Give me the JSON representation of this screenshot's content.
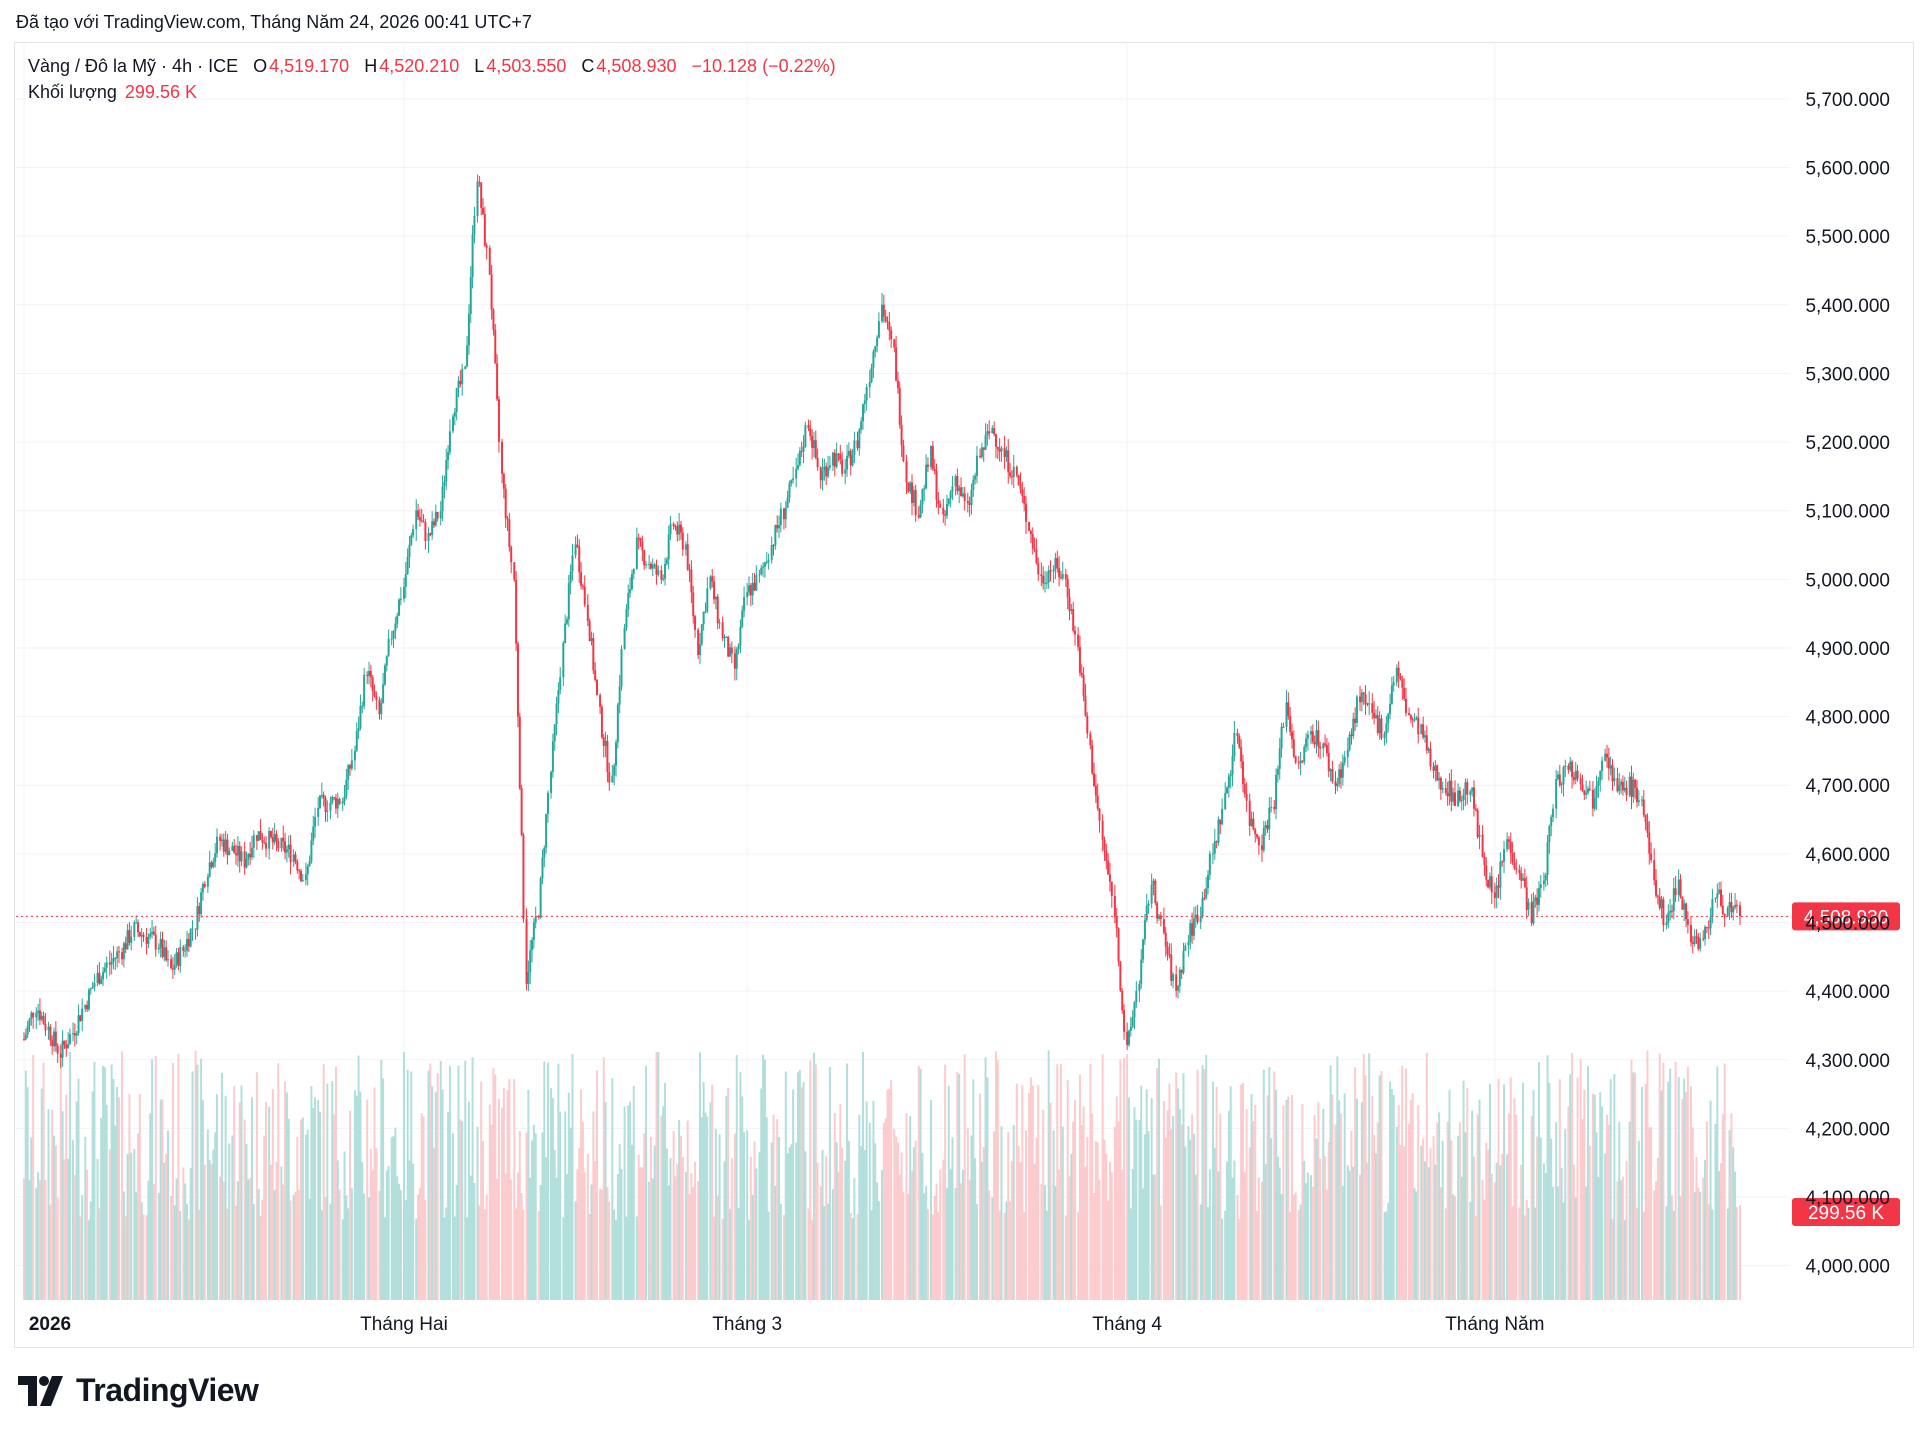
{
  "header": {
    "created_with": "Đã tạo với TradingView.com, Tháng Năm 24, 2026 00:41 UTC+7"
  },
  "legend": {
    "symbol": "Vàng / Đô la Mỹ · 4h · ICE",
    "o_label": "O",
    "o_value": "4,519.170",
    "h_label": "H",
    "h_value": "4,520.210",
    "l_label": "L",
    "l_value": "4,503.550",
    "c_label": "C",
    "c_value": "4,508.930",
    "change": "−10.128 (−0.22%)",
    "volume_label": "Khối lượng",
    "volume_value": "299.56 K"
  },
  "brand": {
    "name": "TradingView"
  },
  "colors": {
    "up": "#26a69a",
    "down": "#f23645",
    "vol_up": "#b2dfdb",
    "vol_down": "#fccbcd",
    "grid": "#f0f3fa",
    "text": "#131722"
  },
  "chart_data": {
    "type": "candlestick",
    "symbol": "XAU/USD",
    "interval": "4h",
    "y_axis": {
      "range": [
        3950,
        5780
      ],
      "ticks": [
        4000,
        4100,
        4200,
        4300,
        4400,
        4500,
        4600,
        4700,
        4800,
        4900,
        5000,
        5100,
        5200,
        5300,
        5400,
        5500,
        5600,
        5700
      ],
      "tick_labels": [
        "4,000.000",
        "4,100.000",
        "4,200.000",
        "4,300.000",
        "4,400.000",
        "4,500.000",
        "4,600.000",
        "4,700.000",
        "4,800.000",
        "4,900.000",
        "5,000.000",
        "5,100.000",
        "5,200.000",
        "5,300.000",
        "5,400.000",
        "5,500.000",
        "5,600.000",
        "5,700.000"
      ]
    },
    "x_axis": {
      "labels": [
        {
          "text": "2026",
          "date": "2026-01-01",
          "bold": true
        },
        {
          "text": "Tháng Hai",
          "date": "2026-02-01",
          "bold": false
        },
        {
          "text": "Tháng 3",
          "date": "2026-03-01",
          "bold": false
        },
        {
          "text": "Tháng 4",
          "date": "2026-04-01",
          "bold": false
        },
        {
          "text": "Tháng Năm",
          "date": "2026-05-01",
          "bold": false
        }
      ]
    },
    "last_price": 4508.93,
    "last_price_label": "4,508.930",
    "last_volume_label": "299.56 K",
    "close_path": [
      [
        "2026-01-01",
        4330
      ],
      [
        "2026-01-02",
        4380
      ],
      [
        "2026-01-04",
        4310
      ],
      [
        "2026-01-05",
        4340
      ],
      [
        "2026-01-07",
        4420
      ],
      [
        "2026-01-09",
        4460
      ],
      [
        "2026-01-10",
        4490
      ],
      [
        "2026-01-12",
        4470
      ],
      [
        "2026-01-13",
        4430
      ],
      [
        "2026-01-14",
        4460
      ],
      [
        "2026-01-15",
        4500
      ],
      [
        "2026-01-16",
        4580
      ],
      [
        "2026-01-17",
        4620
      ],
      [
        "2026-01-19",
        4590
      ],
      [
        "2026-01-20",
        4630
      ],
      [
        "2026-01-22",
        4610
      ],
      [
        "2026-01-23",
        4600
      ],
      [
        "2026-01-24",
        4560
      ],
      [
        "2026-01-25",
        4670
      ],
      [
        "2026-01-27",
        4680
      ],
      [
        "2026-01-28",
        4750
      ],
      [
        "2026-01-29",
        4870
      ],
      [
        "2026-01-30",
        4800
      ],
      [
        "2026-01-31",
        4920
      ],
      [
        "2026-02-01",
        4990
      ],
      [
        "2026-02-02",
        5100
      ],
      [
        "2026-02-03",
        5060
      ],
      [
        "2026-02-04",
        5100
      ],
      [
        "2026-02-05",
        5250
      ],
      [
        "2026-02-06",
        5300
      ],
      [
        "2026-02-07",
        5590
      ],
      [
        "2026-02-08",
        5450
      ],
      [
        "2026-02-09",
        5150
      ],
      [
        "2026-02-10",
        5000
      ],
      [
        "2026-02-11",
        4420
      ],
      [
        "2026-02-12",
        4520
      ],
      [
        "2026-02-13",
        4720
      ],
      [
        "2026-02-14",
        4900
      ],
      [
        "2026-02-15",
        5060
      ],
      [
        "2026-02-16",
        4950
      ],
      [
        "2026-02-17",
        4800
      ],
      [
        "2026-02-18",
        4700
      ],
      [
        "2026-02-19",
        4930
      ],
      [
        "2026-02-20",
        5050
      ],
      [
        "2026-02-22",
        5000
      ],
      [
        "2026-02-23",
        5080
      ],
      [
        "2026-02-24",
        5050
      ],
      [
        "2026-02-25",
        4900
      ],
      [
        "2026-02-26",
        5000
      ],
      [
        "2026-02-27",
        4920
      ],
      [
        "2026-02-28",
        4870
      ],
      [
        "2026-03-01",
        4980
      ],
      [
        "2026-03-02",
        5000
      ],
      [
        "2026-03-03",
        5050
      ],
      [
        "2026-03-05",
        5150
      ],
      [
        "2026-03-06",
        5230
      ],
      [
        "2026-03-07",
        5150
      ],
      [
        "2026-03-08",
        5180
      ],
      [
        "2026-03-09",
        5160
      ],
      [
        "2026-03-10",
        5200
      ],
      [
        "2026-03-11",
        5300
      ],
      [
        "2026-03-12",
        5400
      ],
      [
        "2026-03-13",
        5330
      ],
      [
        "2026-03-14",
        5150
      ],
      [
        "2026-03-15",
        5100
      ],
      [
        "2026-03-16",
        5180
      ],
      [
        "2026-03-17",
        5080
      ],
      [
        "2026-03-18",
        5150
      ],
      [
        "2026-03-19",
        5100
      ],
      [
        "2026-03-20",
        5180
      ],
      [
        "2026-03-21",
        5220
      ],
      [
        "2026-03-22",
        5180
      ],
      [
        "2026-03-23",
        5150
      ],
      [
        "2026-03-24",
        5080
      ],
      [
        "2026-03-25",
        5000
      ],
      [
        "2026-03-26",
        5020
      ],
      [
        "2026-03-27",
        5000
      ],
      [
        "2026-03-28",
        4900
      ],
      [
        "2026-03-29",
        4750
      ],
      [
        "2026-03-30",
        4620
      ],
      [
        "2026-03-31",
        4520
      ],
      [
        "2026-04-01",
        4310
      ],
      [
        "2026-04-02",
        4420
      ],
      [
        "2026-04-03",
        4560
      ],
      [
        "2026-04-04",
        4480
      ],
      [
        "2026-04-05",
        4400
      ],
      [
        "2026-04-06",
        4480
      ],
      [
        "2026-04-07",
        4520
      ],
      [
        "2026-04-08",
        4600
      ],
      [
        "2026-04-09",
        4680
      ],
      [
        "2026-04-10",
        4780
      ],
      [
        "2026-04-11",
        4650
      ],
      [
        "2026-04-12",
        4620
      ],
      [
        "2026-04-13",
        4680
      ],
      [
        "2026-04-14",
        4820
      ],
      [
        "2026-04-15",
        4720
      ],
      [
        "2026-04-16",
        4780
      ],
      [
        "2026-04-17",
        4760
      ],
      [
        "2026-04-18",
        4700
      ],
      [
        "2026-04-19",
        4750
      ],
      [
        "2026-04-20",
        4830
      ],
      [
        "2026-04-21",
        4800
      ],
      [
        "2026-04-22",
        4780
      ],
      [
        "2026-04-23",
        4870
      ],
      [
        "2026-04-24",
        4800
      ],
      [
        "2026-04-25",
        4780
      ],
      [
        "2026-04-26",
        4720
      ],
      [
        "2026-04-27",
        4700
      ],
      [
        "2026-04-28",
        4680
      ],
      [
        "2026-04-29",
        4700
      ],
      [
        "2026-04-30",
        4600
      ],
      [
        "2026-05-01",
        4530
      ],
      [
        "2026-05-02",
        4620
      ],
      [
        "2026-05-03",
        4580
      ],
      [
        "2026-05-04",
        4510
      ],
      [
        "2026-05-05",
        4560
      ],
      [
        "2026-05-06",
        4700
      ],
      [
        "2026-05-07",
        4730
      ],
      [
        "2026-05-08",
        4710
      ],
      [
        "2026-05-09",
        4680
      ],
      [
        "2026-05-10",
        4760
      ],
      [
        "2026-05-11",
        4690
      ],
      [
        "2026-05-12",
        4700
      ],
      [
        "2026-05-13",
        4680
      ],
      [
        "2026-05-14",
        4560
      ],
      [
        "2026-05-15",
        4500
      ],
      [
        "2026-05-16",
        4560
      ],
      [
        "2026-05-17",
        4480
      ],
      [
        "2026-05-18",
        4470
      ],
      [
        "2026-05-19",
        4540
      ],
      [
        "2026-05-20",
        4520
      ],
      [
        "2026-05-21",
        4508.93
      ]
    ]
  }
}
